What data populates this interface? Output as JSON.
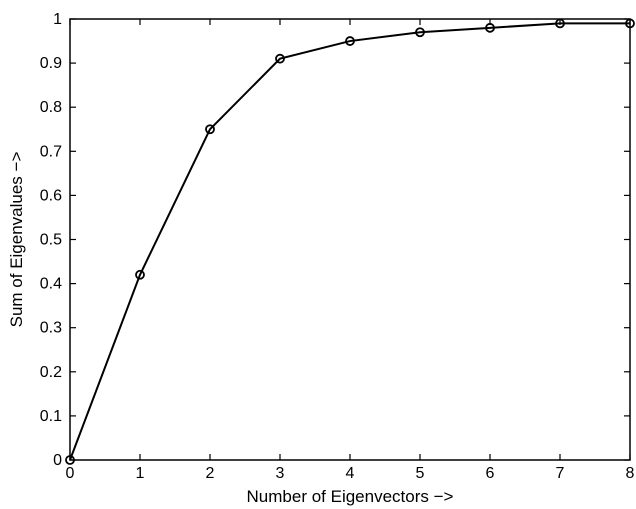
{
  "chart_data": {
    "type": "line",
    "title": "",
    "xlabel": "Number of Eigenvectors −>",
    "ylabel": "Sum of Eigenvalues −>",
    "xlim": [
      0,
      8
    ],
    "ylim": [
      0,
      1
    ],
    "grid": false,
    "legend": "none",
    "x_ticks": [
      "0",
      "1",
      "2",
      "3",
      "4",
      "5",
      "6",
      "7",
      "8"
    ],
    "y_ticks": [
      "0",
      "0.1",
      "0.2",
      "0.3",
      "0.4",
      "0.5",
      "0.6",
      "0.7",
      "0.8",
      "0.9",
      "1"
    ],
    "series": [
      {
        "x": [
          0,
          1,
          2,
          3,
          4,
          5,
          6,
          7,
          8
        ],
        "values": [
          0,
          0.42,
          0.75,
          0.91,
          0.95,
          0.97,
          0.98,
          0.99,
          0.99
        ],
        "color": "#000000",
        "marker": "circle"
      }
    ]
  }
}
